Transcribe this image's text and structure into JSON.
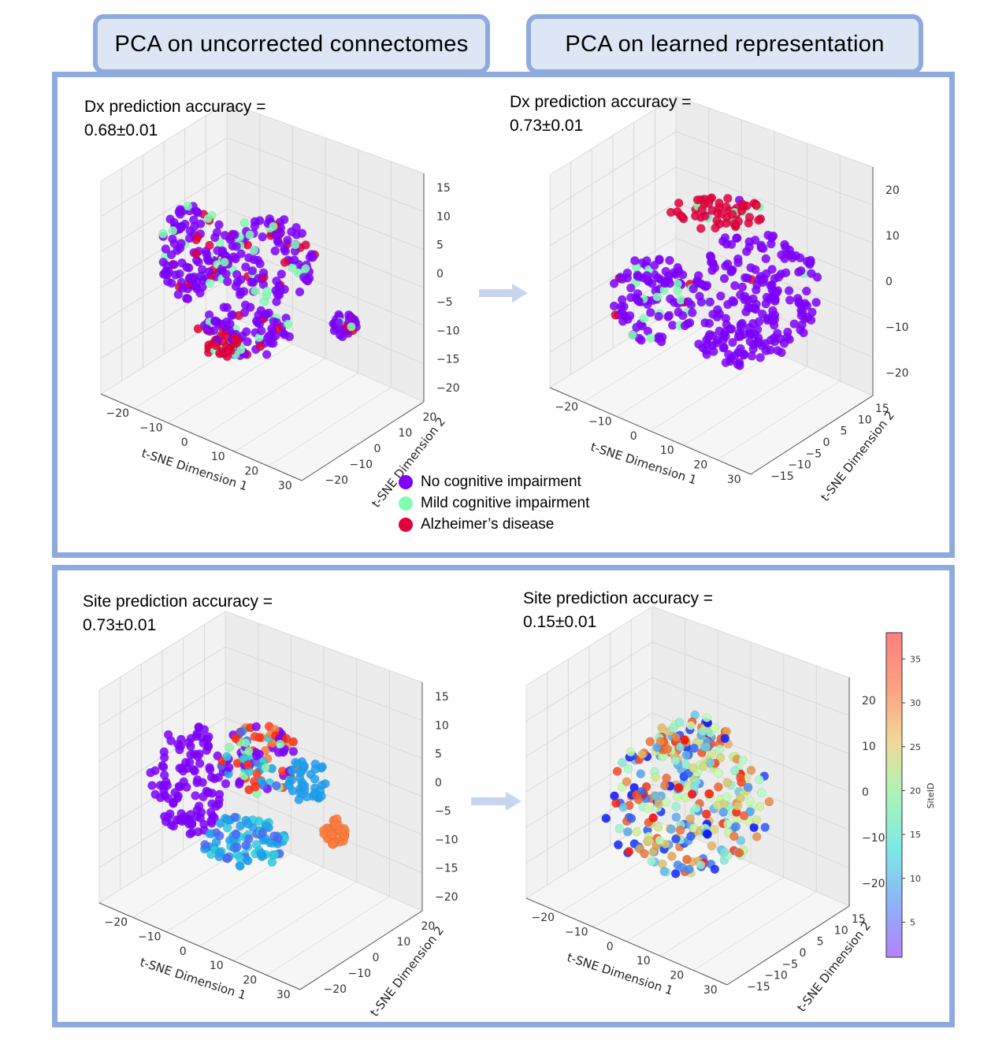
{
  "headers": {
    "left": "PCA on uncorrected connectomes",
    "right": "PCA on learned representation"
  },
  "top_panel": {
    "left_accuracy": {
      "line1": "Dx prediction accuracy =",
      "line2": "0.68±0.01"
    },
    "right_accuracy": {
      "line1": "Dx prediction accuracy =",
      "line2": "0.73±0.01"
    },
    "legend": [
      {
        "label": "No cognitive impairment",
        "color": "#7f00ff"
      },
      {
        "label": "Mild cognitive impairment",
        "color": "#80ffb4"
      },
      {
        "label": "Alzheimer’s disease",
        "color": "#e0003c"
      }
    ]
  },
  "bottom_panel": {
    "left_accuracy": {
      "line1": "Site prediction accuracy =",
      "line2": "0.73±0.01"
    },
    "right_accuracy": {
      "line1": "Site prediction accuracy =",
      "line2": "0.15±0.01"
    }
  },
  "colors": {
    "accent": "#8faadc",
    "tab_fill": "#dde6f5",
    "arrow": "#c7d5ee"
  },
  "chart_data": [
    {
      "type": "scatter",
      "title": "",
      "xlabel": "t-SNE Dimension 1",
      "ylabel": "t-SNE Dimension 2",
      "x_ticks": [
        "−20",
        "−10",
        "0",
        "10",
        "20",
        "30"
      ],
      "y_ticks": [
        "−20",
        "−10",
        "0",
        "10",
        "20"
      ],
      "z_ticks": [
        "−20",
        "−15",
        "−10",
        "−5",
        "0",
        "5",
        "10",
        "15"
      ],
      "xlim": [
        -25,
        32
      ],
      "ylim": [
        -22,
        28
      ],
      "zlim": [
        -22,
        17
      ],
      "color_by": "diagnosis",
      "series": [
        {
          "name": "No cognitive impairment",
          "color": "#7f00ff"
        },
        {
          "name": "Mild cognitive impairment",
          "color": "#80ffb4"
        },
        {
          "name": "Alzheimer’s disease",
          "color": "#e0003c"
        }
      ]
    },
    {
      "type": "scatter",
      "title": "",
      "xlabel": "t-SNE Dimension 1",
      "ylabel": "t-SNE Dimension 2",
      "x_ticks": [
        "−20",
        "−10",
        "0",
        "10",
        "20",
        "30"
      ],
      "y_ticks": [
        "−15",
        "−10",
        "−5",
        "0",
        "5",
        "10",
        "15"
      ],
      "z_ticks": [
        "−20",
        "−10",
        "0",
        "10",
        "20"
      ],
      "xlim": [
        -25,
        32
      ],
      "ylim": [
        -17,
        17
      ],
      "zlim": [
        -24,
        24
      ],
      "color_by": "diagnosis",
      "series": [
        {
          "name": "No cognitive impairment",
          "color": "#7f00ff"
        },
        {
          "name": "Mild cognitive impairment",
          "color": "#80ffb4"
        },
        {
          "name": "Alzheimer’s disease",
          "color": "#e0003c"
        }
      ]
    },
    {
      "type": "scatter",
      "title": "",
      "xlabel": "t-SNE Dimension 1",
      "ylabel": "t-SNE Dimension 2",
      "x_ticks": [
        "−20",
        "−10",
        "0",
        "10",
        "20",
        "30"
      ],
      "y_ticks": [
        "−20",
        "−10",
        "0",
        "10",
        "20"
      ],
      "z_ticks": [
        "−20",
        "−15",
        "−10",
        "−5",
        "0",
        "5",
        "10",
        "15"
      ],
      "xlim": [
        -25,
        32
      ],
      "ylim": [
        -22,
        28
      ],
      "zlim": [
        -22,
        17
      ],
      "color_by": "site"
    },
    {
      "type": "scatter",
      "title": "",
      "xlabel": "t-SNE Dimension 1",
      "ylabel": "t-SNE Dimension 2",
      "x_ticks": [
        "−20",
        "−10",
        "0",
        "10",
        "20",
        "30"
      ],
      "y_ticks": [
        "−15",
        "−10",
        "−5",
        "0",
        "5",
        "10",
        "15"
      ],
      "z_ticks": [
        "−20",
        "−10",
        "0",
        "10",
        "20"
      ],
      "xlim": [
        -25,
        32
      ],
      "ylim": [
        -17,
        17
      ],
      "zlim": [
        -24,
        24
      ],
      "color_by": "site",
      "colorbar": {
        "label": "SiteID",
        "ticks": [
          "5",
          "10",
          "15",
          "20",
          "25",
          "30",
          "35"
        ],
        "range": [
          1,
          38
        ]
      }
    }
  ]
}
